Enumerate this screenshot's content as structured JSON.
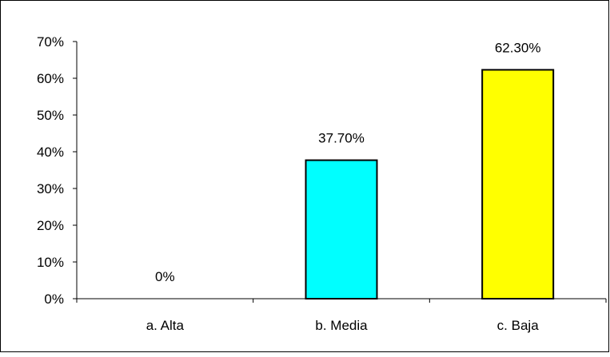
{
  "chart_data": {
    "type": "bar",
    "categories": [
      "a. Alta",
      "b. Media",
      "c. Baja"
    ],
    "values": [
      0,
      37.7,
      62.3
    ],
    "data_labels": [
      "0%",
      "37.70%",
      "62.30%"
    ],
    "bar_colors": [
      "#00FFFF",
      "#00FFFF",
      "#FFFF00"
    ],
    "y_ticks": [
      "0%",
      "10%",
      "20%",
      "30%",
      "40%",
      "50%",
      "60%",
      "70%"
    ],
    "ylim": [
      0,
      70
    ],
    "title": "",
    "xlabel": "",
    "ylabel": "",
    "grid": false,
    "legend": "none"
  }
}
